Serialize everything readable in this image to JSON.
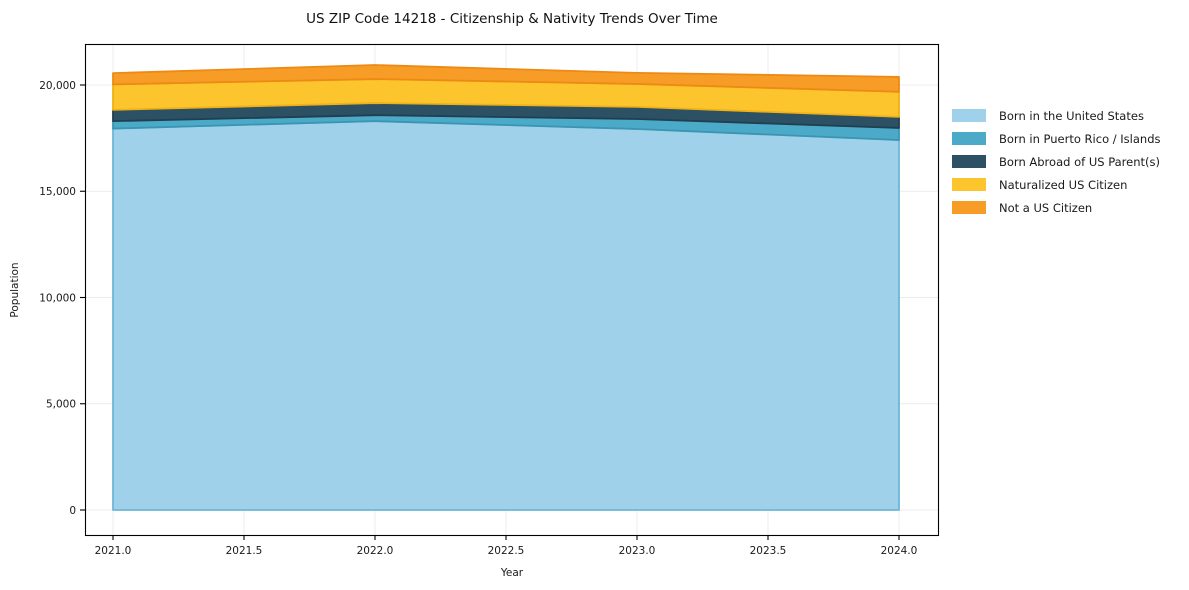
{
  "title": "US ZIP Code 14218 - Citizenship & Nativity Trends Over Time",
  "chart_data": {
    "type": "area",
    "stacked": true,
    "title": "US ZIP Code 14218 - Citizenship & Nativity Trends Over Time",
    "xlabel": "Year",
    "ylabel": "Population",
    "x": [
      2021,
      2022,
      2023,
      2024
    ],
    "series": [
      {
        "name": "Born in the United States",
        "values": [
          17950,
          18300,
          17930,
          17410
        ],
        "color": "#9FD2EA",
        "edge": "#6FB6D8"
      },
      {
        "name": "Born in Puerto Rico / Islands",
        "values": [
          350,
          280,
          470,
          570
        ],
        "color": "#4AAAC8",
        "edge": "#3B95B2"
      },
      {
        "name": "Born Abroad of US Parent(s)",
        "values": [
          530,
          570,
          570,
          520
        ],
        "color": "#2C5064",
        "edge": "#223F4F"
      },
      {
        "name": "Naturalized US Citizen",
        "values": [
          1200,
          1130,
          1080,
          1180
        ],
        "color": "#FCC52E",
        "edge": "#EFB115"
      },
      {
        "name": "Not a US Citizen",
        "values": [
          530,
          660,
          520,
          700
        ],
        "color": "#F89C28",
        "edge": "#EC8A14"
      }
    ],
    "x_ticks": [
      2021.0,
      2021.5,
      2022.0,
      2022.5,
      2023.0,
      2023.5,
      2024.0
    ],
    "x_ticklabels": [
      "2021.0",
      "2021.5",
      "2022.0",
      "2022.5",
      "2023.0",
      "2023.5",
      "2024.0"
    ],
    "y_ticks": [
      0,
      5000,
      10000,
      15000,
      20000
    ],
    "y_ticklabels": [
      "0",
      "5,000",
      "10,000",
      "15,000",
      "20,000"
    ],
    "grid": true,
    "legend_position": "right-outside",
    "colors": {
      "background": "#ffffff",
      "grid": "#ececec",
      "spine": "#000000",
      "text": "#1a1a1a"
    }
  }
}
